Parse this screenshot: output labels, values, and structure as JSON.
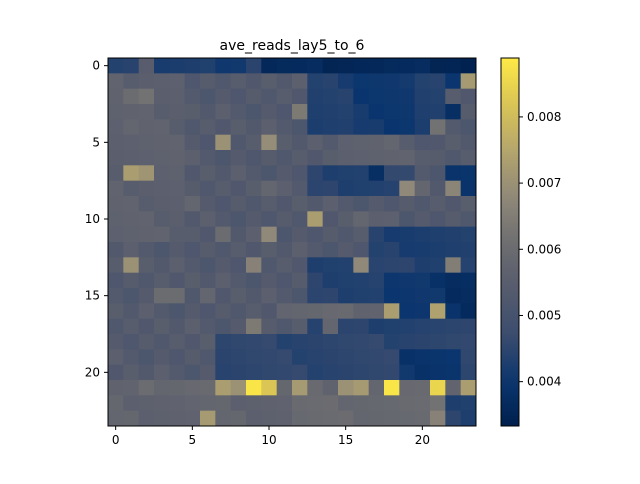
{
  "chart_data": {
    "type": "heatmap",
    "title": "ave_reads_lay5_to_6",
    "xlabel": "",
    "ylabel": "",
    "rows": 24,
    "cols": 24,
    "x_ticks": [
      0,
      5,
      10,
      15,
      20
    ],
    "y_ticks": [
      0,
      5,
      10,
      15,
      20
    ],
    "colormap": "cividis",
    "colorbar": {
      "vmin": 0.00333,
      "vmax": 0.00889,
      "ticks": [
        0.004,
        0.005,
        0.006,
        0.007,
        0.008
      ],
      "tick_labels": [
        "0.004",
        "0.005",
        "0.006",
        "0.007",
        "0.008"
      ]
    },
    "base_value": 0.00535,
    "blocks": [
      {
        "rows": [
          0,
          0
        ],
        "cols": [
          0,
          23
        ],
        "value": 0.0045
      },
      {
        "rows": [
          0,
          0
        ],
        "cols": [
          2,
          2
        ],
        "value": 0.0055
      },
      {
        "rows": [
          0,
          0
        ],
        "cols": [
          3,
          8
        ],
        "value": 0.0042
      },
      {
        "rows": [
          0,
          0
        ],
        "cols": [
          10,
          23
        ],
        "value": 0.0036
      },
      {
        "rows": [
          1,
          11
        ],
        "cols": [
          0,
          4
        ],
        "value": 0.0056
      },
      {
        "rows": [
          1,
          4
        ],
        "cols": [
          13,
          21
        ],
        "value": 0.0043
      },
      {
        "rows": [
          1,
          4
        ],
        "cols": [
          16,
          19
        ],
        "value": 0.0041
      },
      {
        "rows": [
          5,
          6
        ],
        "cols": [
          15,
          20
        ],
        "value": 0.0056
      },
      {
        "rows": [
          7,
          8
        ],
        "cols": [
          13,
          19
        ],
        "value": 0.0044
      },
      {
        "rows": [
          7,
          8
        ],
        "cols": [
          22,
          23
        ],
        "value": 0.004
      },
      {
        "rows": [
          11,
          14
        ],
        "cols": [
          17,
          23
        ],
        "value": 0.0043
      },
      {
        "rows": [
          13,
          17
        ],
        "cols": [
          13,
          23
        ],
        "value": 0.0044
      },
      {
        "rows": [
          14,
          16
        ],
        "cols": [
          18,
          21
        ],
        "value": 0.004
      },
      {
        "rows": [
          14,
          16
        ],
        "cols": [
          22,
          23
        ],
        "value": 0.0038
      },
      {
        "rows": [
          16,
          16
        ],
        "cols": [
          11,
          17
        ],
        "value": 0.0058
      },
      {
        "rows": [
          18,
          20
        ],
        "cols": [
          7,
          23
        ],
        "value": 0.0045
      },
      {
        "rows": [
          19,
          20
        ],
        "cols": [
          19,
          22
        ],
        "value": 0.004
      },
      {
        "rows": [
          21,
          21
        ],
        "cols": [
          0,
          23
        ],
        "value": 0.0058
      },
      {
        "rows": [
          22,
          23
        ],
        "cols": [
          0,
          11
        ],
        "value": 0.0057
      },
      {
        "rows": [
          22,
          23
        ],
        "cols": [
          12,
          21
        ],
        "value": 0.0059
      },
      {
        "rows": [
          22,
          23
        ],
        "cols": [
          22,
          23
        ],
        "value": 0.0044
      }
    ],
    "cells": [
      [
        0,
        23,
        0.0034
      ],
      [
        0,
        22,
        0.0035
      ],
      [
        1,
        23,
        0.0072
      ],
      [
        1,
        22,
        0.004
      ],
      [
        2,
        1,
        0.006
      ],
      [
        2,
        2,
        0.0062
      ],
      [
        3,
        12,
        0.0064
      ],
      [
        3,
        22,
        0.0038
      ],
      [
        4,
        21,
        0.0062
      ],
      [
        4,
        1,
        0.0058
      ],
      [
        5,
        7,
        0.007
      ],
      [
        5,
        10,
        0.0069
      ],
      [
        5,
        20,
        0.0052
      ],
      [
        5,
        18,
        0.0058
      ],
      [
        7,
        1,
        0.0073
      ],
      [
        7,
        2,
        0.0071
      ],
      [
        7,
        17,
        0.0038
      ],
      [
        7,
        19,
        0.0046
      ],
      [
        7,
        18,
        0.0046
      ],
      [
        8,
        19,
        0.0068
      ],
      [
        8,
        20,
        0.0058
      ],
      [
        8,
        22,
        0.0067
      ],
      [
        8,
        10,
        0.0058
      ],
      [
        9,
        5,
        0.0058
      ],
      [
        10,
        13,
        0.0073
      ],
      [
        10,
        16,
        0.0058
      ],
      [
        10,
        18,
        0.0056
      ],
      [
        11,
        10,
        0.0068
      ],
      [
        11,
        7,
        0.006
      ],
      [
        13,
        1,
        0.007
      ],
      [
        13,
        9,
        0.0066
      ],
      [
        13,
        16,
        0.0068
      ],
      [
        13,
        22,
        0.0065
      ],
      [
        15,
        3,
        0.006
      ],
      [
        15,
        4,
        0.006
      ],
      [
        15,
        6,
        0.0058
      ],
      [
        16,
        18,
        0.0073
      ],
      [
        16,
        21,
        0.0074
      ],
      [
        17,
        9,
        0.0064
      ],
      [
        17,
        14,
        0.0058
      ],
      [
        21,
        7,
        0.0073
      ],
      [
        21,
        8,
        0.007
      ],
      [
        21,
        9,
        0.0088
      ],
      [
        21,
        10,
        0.0082
      ],
      [
        21,
        12,
        0.0072
      ],
      [
        21,
        15,
        0.007
      ],
      [
        21,
        16,
        0.0072
      ],
      [
        21,
        18,
        0.0088
      ],
      [
        21,
        21,
        0.0085
      ],
      [
        21,
        23,
        0.0073
      ],
      [
        21,
        2,
        0.006
      ],
      [
        23,
        6,
        0.0072
      ],
      [
        23,
        21,
        0.0066
      ],
      [
        22,
        21,
        0.0062
      ]
    ]
  }
}
